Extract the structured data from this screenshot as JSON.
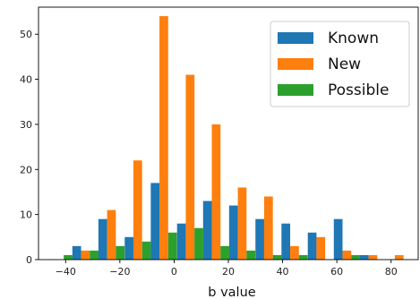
{
  "chart_data": {
    "type": "bar",
    "xlabel": "b value",
    "ylabel": "",
    "title": "",
    "xlim": [
      -50,
      90
    ],
    "ylim": [
      0,
      56
    ],
    "x_ticks": [
      -40,
      -20,
      0,
      20,
      40,
      60,
      80
    ],
    "y_ticks": [
      0,
      10,
      20,
      30,
      40,
      50
    ],
    "bin_centers": [
      -42.3,
      -32.7,
      -23.1,
      -13.4,
      -3.8,
      5.9,
      15.5,
      25.1,
      34.8,
      44.4,
      54.1,
      63.7,
      73.3,
      83.0
    ],
    "bin_width": 9.63,
    "legend_position": "top-right",
    "grid": false,
    "series": [
      {
        "name": "Known",
        "color": "#1f77b4",
        "values": [
          0,
          3,
          9,
          5,
          17,
          8,
          13,
          12,
          9,
          8,
          6,
          9,
          1,
          0
        ]
      },
      {
        "name": "New",
        "color": "#ff7f0e",
        "values": [
          0,
          2,
          11,
          22,
          54,
          41,
          30,
          16,
          14,
          3,
          5,
          2,
          1,
          1
        ]
      },
      {
        "name": "Possible",
        "color": "#2ca02c",
        "values": [
          1,
          2,
          3,
          4,
          6,
          7,
          3,
          2,
          1,
          1,
          0,
          1,
          0,
          0
        ]
      }
    ]
  }
}
